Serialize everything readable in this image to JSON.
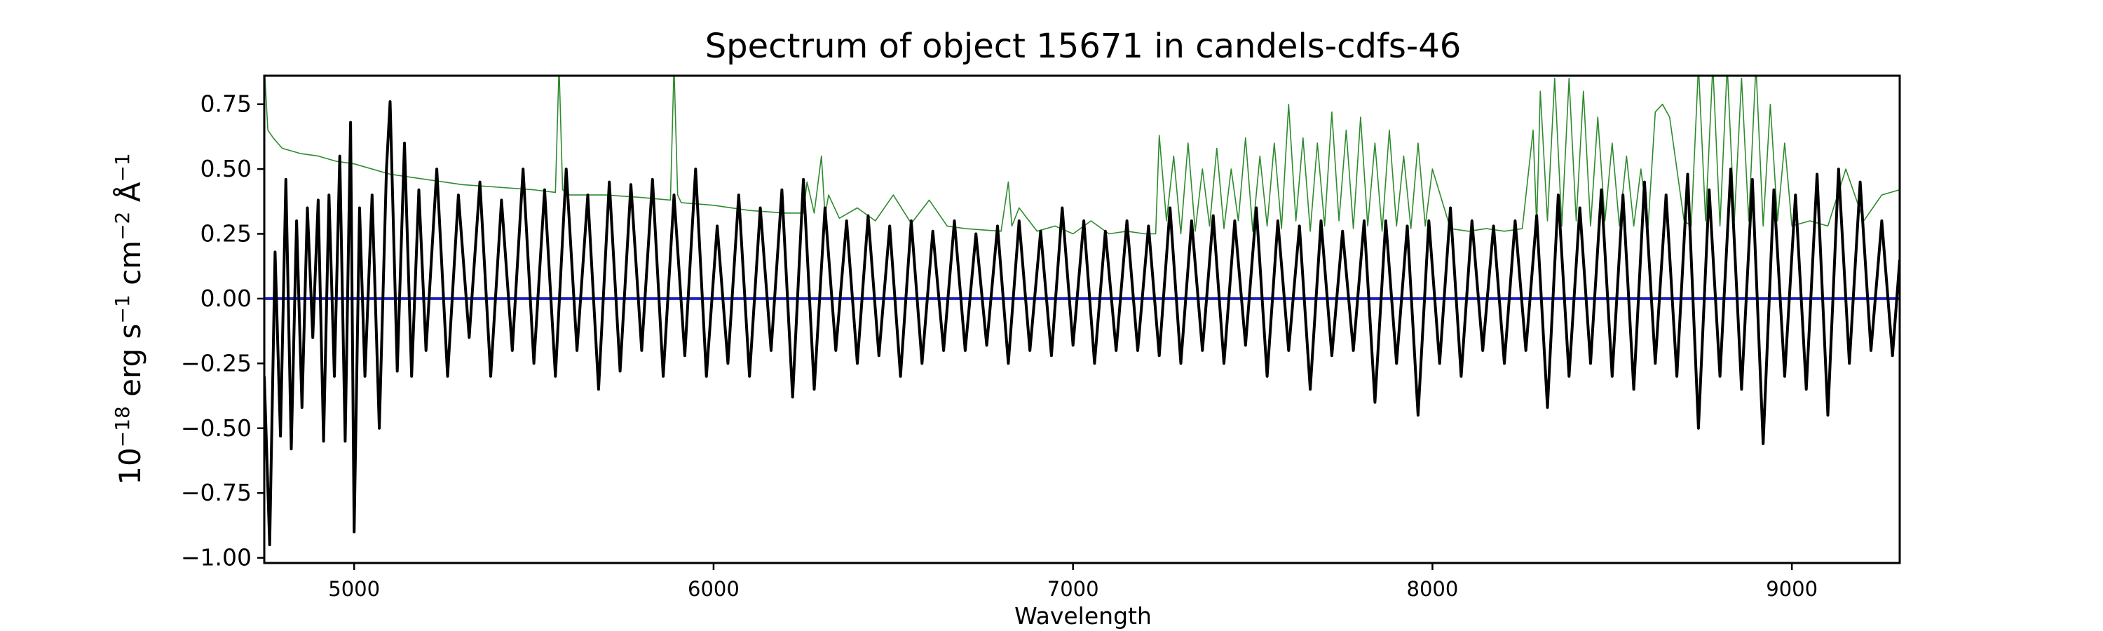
{
  "chart_data": {
    "type": "line",
    "title": "Spectrum of object 15671 in candels-cdfs-46",
    "xlabel": "Wavelength",
    "ylabel": {
      "base": "10",
      "exp1": "−18",
      "erg": " erg s",
      "exp2": "−1",
      "cm": " cm",
      "exp3": "−2",
      "ang": " Å",
      "exp4": "−1"
    },
    "xlim": [
      4750,
      9300
    ],
    "ylim": [
      -1.02,
      0.86
    ],
    "x_ticks": [
      5000,
      6000,
      7000,
      8000,
      9000
    ],
    "x_tick_labels": [
      "5000",
      "6000",
      "7000",
      "8000",
      "9000"
    ],
    "y_ticks": [
      -1.0,
      -0.75,
      -0.5,
      -0.25,
      0.0,
      0.25,
      0.5,
      0.75
    ],
    "y_tick_labels": [
      "−1.00",
      "−0.75",
      "−0.50",
      "−0.25",
      "0.00",
      "0.25",
      "0.50",
      "0.75"
    ],
    "grid": false,
    "series": [
      {
        "color": "#000000",
        "x": [
          4750,
          4765,
          4780,
          4795,
          4810,
          4825,
          4840,
          4855,
          4870,
          4885,
          4900,
          4915,
          4930,
          4945,
          4960,
          4975,
          4990,
          5000,
          5015,
          5030,
          5050,
          5070,
          5090,
          5100,
          5120,
          5140,
          5160,
          5180,
          5200,
          5230,
          5260,
          5290,
          5320,
          5350,
          5380,
          5410,
          5440,
          5470,
          5500,
          5530,
          5560,
          5590,
          5620,
          5650,
          5680,
          5710,
          5740,
          5770,
          5800,
          5830,
          5860,
          5890,
          5920,
          5950,
          5980,
          6010,
          6040,
          6070,
          6100,
          6130,
          6160,
          6190,
          6220,
          6250,
          6280,
          6310,
          6340,
          6370,
          6400,
          6430,
          6460,
          6490,
          6520,
          6550,
          6580,
          6610,
          6640,
          6670,
          6700,
          6730,
          6760,
          6790,
          6820,
          6850,
          6880,
          6910,
          6940,
          6970,
          7000,
          7030,
          7060,
          7090,
          7120,
          7150,
          7180,
          7210,
          7240,
          7270,
          7300,
          7330,
          7360,
          7390,
          7420,
          7450,
          7480,
          7510,
          7540,
          7570,
          7600,
          7630,
          7660,
          7690,
          7720,
          7750,
          7780,
          7810,
          7840,
          7870,
          7900,
          7930,
          7960,
          7990,
          8020,
          8050,
          8080,
          8110,
          8140,
          8170,
          8200,
          8230,
          8260,
          8290,
          8320,
          8350,
          8380,
          8410,
          8440,
          8470,
          8500,
          8530,
          8560,
          8590,
          8620,
          8650,
          8680,
          8710,
          8740,
          8770,
          8800,
          8830,
          8860,
          8890,
          8920,
          8950,
          8980,
          9010,
          9040,
          9070,
          9100,
          9130,
          9160,
          9190,
          9220,
          9250,
          9280,
          9300
        ],
        "y": [
          -0.3,
          -0.95,
          0.18,
          -0.53,
          0.46,
          -0.58,
          0.3,
          -0.42,
          0.35,
          -0.15,
          0.38,
          -0.55,
          0.4,
          -0.3,
          0.55,
          -0.55,
          0.68,
          -0.9,
          0.35,
          -0.3,
          0.4,
          -0.5,
          0.5,
          0.76,
          -0.28,
          0.6,
          -0.3,
          0.42,
          -0.2,
          0.5,
          -0.3,
          0.4,
          -0.15,
          0.45,
          -0.3,
          0.38,
          -0.2,
          0.5,
          -0.25,
          0.42,
          -0.3,
          0.5,
          -0.2,
          0.4,
          -0.35,
          0.45,
          -0.28,
          0.44,
          -0.2,
          0.46,
          -0.3,
          0.4,
          -0.22,
          0.5,
          -0.3,
          0.28,
          -0.25,
          0.4,
          -0.3,
          0.35,
          -0.2,
          0.42,
          -0.38,
          0.46,
          -0.35,
          0.35,
          -0.2,
          0.3,
          -0.25,
          0.32,
          -0.22,
          0.28,
          -0.3,
          0.3,
          -0.25,
          0.26,
          -0.2,
          0.3,
          -0.2,
          0.25,
          -0.18,
          0.28,
          -0.25,
          0.3,
          -0.2,
          0.26,
          -0.22,
          0.35,
          -0.18,
          0.3,
          -0.25,
          0.26,
          -0.2,
          0.3,
          -0.2,
          0.28,
          -0.22,
          0.35,
          -0.25,
          0.3,
          -0.2,
          0.32,
          -0.25,
          0.3,
          -0.18,
          0.35,
          -0.3,
          0.3,
          -0.2,
          0.28,
          -0.35,
          0.3,
          -0.22,
          0.26,
          -0.2,
          0.3,
          -0.4,
          0.3,
          -0.25,
          0.28,
          -0.45,
          0.3,
          -0.25,
          0.35,
          -0.3,
          0.3,
          -0.2,
          0.28,
          -0.25,
          0.3,
          -0.2,
          0.32,
          -0.42,
          0.4,
          -0.3,
          0.35,
          -0.25,
          0.42,
          -0.3,
          0.4,
          -0.35,
          0.45,
          -0.25,
          0.4,
          -0.3,
          0.48,
          -0.5,
          0.42,
          -0.3,
          0.5,
          -0.35,
          0.46,
          -0.56,
          0.42,
          -0.3,
          0.4,
          -0.35,
          0.48,
          -0.45,
          0.5,
          -0.25,
          0.45,
          -0.2,
          0.3,
          -0.22,
          0.15
        ]
      },
      {
        "color": "#2e8b2e",
        "x": [
          4750,
          4760,
          4775,
          4800,
          4850,
          4900,
          4950,
          5000,
          5100,
          5200,
          5300,
          5400,
          5500,
          5560,
          5570,
          5580,
          5590,
          5600,
          5700,
          5800,
          5880,
          5890,
          5900,
          5910,
          6000,
          6100,
          6200,
          6250,
          6260,
          6280,
          6300,
          6310,
          6320,
          6350,
          6400,
          6450,
          6500,
          6550,
          6600,
          6650,
          6700,
          6800,
          6820,
          6830,
          6850,
          6900,
          6950,
          7000,
          7050,
          7100,
          7150,
          7200,
          7230,
          7240,
          7260,
          7280,
          7300,
          7320,
          7340,
          7360,
          7380,
          7400,
          7420,
          7440,
          7460,
          7480,
          7500,
          7520,
          7540,
          7560,
          7580,
          7600,
          7620,
          7640,
          7660,
          7680,
          7700,
          7720,
          7740,
          7760,
          7780,
          7800,
          7820,
          7840,
          7860,
          7880,
          7900,
          7920,
          7940,
          7960,
          7980,
          8000,
          8050,
          8100,
          8150,
          8200,
          8250,
          8280,
          8290,
          8300,
          8320,
          8340,
          8360,
          8380,
          8400,
          8420,
          8440,
          8460,
          8480,
          8500,
          8520,
          8540,
          8560,
          8580,
          8600,
          8620,
          8640,
          8660,
          8680,
          8700,
          8720,
          8740,
          8760,
          8780,
          8800,
          8820,
          8840,
          8860,
          8880,
          8900,
          8920,
          8940,
          8960,
          8980,
          9000,
          9050,
          9100,
          9150,
          9200,
          9250,
          9300
        ],
        "y": [
          0.9,
          0.65,
          0.62,
          0.58,
          0.56,
          0.55,
          0.53,
          0.52,
          0.48,
          0.46,
          0.44,
          0.43,
          0.42,
          0.41,
          0.9,
          0.42,
          0.41,
          0.4,
          0.4,
          0.39,
          0.38,
          0.9,
          0.4,
          0.37,
          0.36,
          0.34,
          0.33,
          0.33,
          0.45,
          0.33,
          0.55,
          0.32,
          0.4,
          0.31,
          0.35,
          0.3,
          0.4,
          0.29,
          0.38,
          0.28,
          0.27,
          0.26,
          0.45,
          0.28,
          0.35,
          0.26,
          0.28,
          0.25,
          0.3,
          0.25,
          0.26,
          0.25,
          0.25,
          0.63,
          0.3,
          0.55,
          0.25,
          0.6,
          0.26,
          0.5,
          0.28,
          0.58,
          0.27,
          0.5,
          0.3,
          0.62,
          0.26,
          0.55,
          0.28,
          0.6,
          0.27,
          0.75,
          0.3,
          0.62,
          0.26,
          0.6,
          0.28,
          0.72,
          0.3,
          0.65,
          0.27,
          0.7,
          0.28,
          0.6,
          0.26,
          0.65,
          0.28,
          0.55,
          0.27,
          0.6,
          0.28,
          0.5,
          0.27,
          0.26,
          0.27,
          0.26,
          0.27,
          0.65,
          0.28,
          0.8,
          0.3,
          0.85,
          0.28,
          0.85,
          0.3,
          0.8,
          0.28,
          0.7,
          0.3,
          0.6,
          0.28,
          0.55,
          0.28,
          0.5,
          0.28,
          0.72,
          0.75,
          0.7,
          0.5,
          0.3,
          0.28,
          0.9,
          0.3,
          0.9,
          0.28,
          0.9,
          0.3,
          0.85,
          0.3,
          0.9,
          0.28,
          0.75,
          0.3,
          0.6,
          0.28,
          0.3,
          0.28,
          0.5,
          0.3,
          0.4,
          0.42
        ]
      },
      {
        "color": "#1f1fbf",
        "x": [
          4750,
          9300
        ],
        "y": [
          0.0,
          0.0
        ]
      }
    ]
  }
}
